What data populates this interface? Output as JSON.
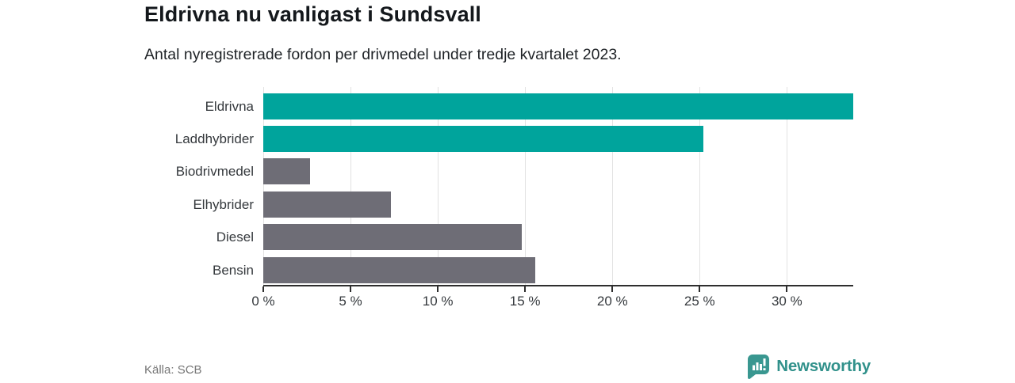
{
  "header": {
    "title": "Eldrivna nu vanligast i Sundsvall",
    "subtitle": "Antal nyregistrerade fordon per drivmedel under tredje kvartalet 2023."
  },
  "chart_data": {
    "type": "bar",
    "orientation": "horizontal",
    "title": "Eldrivna nu vanligast i Sundsvall",
    "subtitle": "Antal nyregistrerade fordon per drivmedel under tredje kvartalet 2023.",
    "categories": [
      "Eldrivna",
      "Laddhybrider",
      "Biodrivmedel",
      "Elhybrider",
      "Diesel",
      "Bensin"
    ],
    "values": [
      33.8,
      25.2,
      2.7,
      7.3,
      14.8,
      15.6
    ],
    "unit": "%",
    "bar_colors": [
      "#00A49C",
      "#00A49C",
      "#6E6D76",
      "#6E6D76",
      "#6E6D76",
      "#6E6D76"
    ],
    "accent_color": "#00A49C",
    "neutral_color": "#6E6D76",
    "xlabel": "",
    "ylabel": "",
    "xlim": [
      0,
      33.8
    ],
    "x_ticks": [
      0,
      5,
      10,
      15,
      20,
      25,
      30
    ],
    "x_tick_labels": [
      "0 %",
      "5 %",
      "10 %",
      "15 %",
      "20 %",
      "25 %",
      "30 %"
    ],
    "grid": true,
    "legend": false
  },
  "footer": {
    "source": "Källa: SCB",
    "brand": "Newsworthy",
    "brand_color": "#31918b",
    "logo_color": "#399790"
  }
}
